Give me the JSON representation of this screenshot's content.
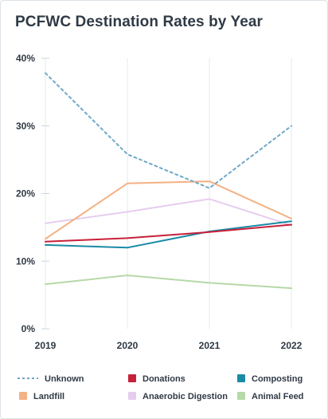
{
  "chart_data": {
    "type": "line",
    "title": "PCFWC Destination Rates by Year",
    "xlabel": "",
    "ylabel": "",
    "x": [
      "2019",
      "2020",
      "2021",
      "2022"
    ],
    "ylim": [
      0,
      40
    ],
    "yticks": [
      "0%",
      "10%",
      "20%",
      "30%",
      "40%"
    ],
    "grid": "vertical",
    "legend_position": "bottom",
    "series": [
      {
        "name": "Unknown",
        "values": [
          37.8,
          25.8,
          20.8,
          30.0
        ],
        "color": "#6fa8c7",
        "dashed": true
      },
      {
        "name": "Donations",
        "values": [
          12.9,
          13.4,
          14.3,
          15.4
        ],
        "color": "#c8203a",
        "dashed": false
      },
      {
        "name": "Composting",
        "values": [
          12.4,
          12.0,
          14.4,
          15.9
        ],
        "color": "#1a8aa5",
        "dashed": false
      },
      {
        "name": "Landfill",
        "values": [
          13.3,
          21.5,
          21.8,
          16.3
        ],
        "color": "#f4b183",
        "dashed": false
      },
      {
        "name": "Anaerobic Digestion",
        "values": [
          15.6,
          17.3,
          19.2,
          15.3
        ],
        "color": "#e6cdee",
        "dashed": false
      },
      {
        "name": "Animal Feed",
        "values": [
          6.6,
          7.9,
          6.8,
          6.0
        ],
        "color": "#b6d9a7",
        "dashed": false
      }
    ]
  }
}
